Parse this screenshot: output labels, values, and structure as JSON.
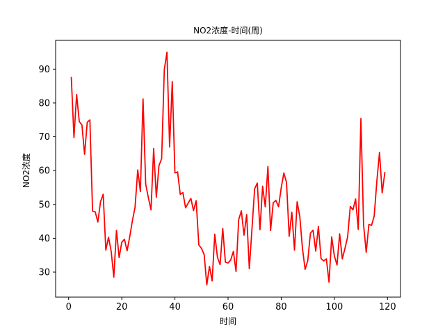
{
  "chart_data": {
    "type": "line",
    "title": "NO2浓度-时间(周)",
    "xlabel": "时间",
    "ylabel": "NO2浓度",
    "xlim": [
      -4.9,
      124.9
    ],
    "ylim": [
      22.6,
      98.5
    ],
    "grid": false,
    "legend": "none",
    "x_ticks": [
      0,
      20,
      40,
      60,
      80,
      100,
      120
    ],
    "y_ticks": [
      30,
      40,
      50,
      60,
      70,
      80,
      90
    ],
    "series": [
      {
        "color": "#ff0000",
        "x": [
          1,
          2,
          3,
          4,
          5,
          6,
          7,
          8,
          9,
          10,
          11,
          12,
          13,
          14,
          15,
          16,
          17,
          18,
          19,
          20,
          21,
          22,
          23,
          24,
          25,
          26,
          27,
          28,
          29,
          30,
          31,
          32,
          33,
          34,
          35,
          36,
          37,
          38,
          39,
          40,
          41,
          42,
          43,
          44,
          45,
          46,
          47,
          48,
          49,
          50,
          51,
          52,
          53,
          54,
          55,
          56,
          57,
          58,
          59,
          60,
          61,
          62,
          63,
          64,
          65,
          66,
          67,
          68,
          69,
          70,
          71,
          72,
          73,
          74,
          75,
          76,
          77,
          78,
          79,
          80,
          81,
          82,
          83,
          84,
          85,
          86,
          87,
          88,
          89,
          90,
          91,
          92,
          93,
          94,
          95,
          96,
          97,
          98,
          99,
          100,
          101,
          102,
          103,
          104,
          105,
          106,
          107,
          108,
          109,
          110,
          111,
          112,
          113,
          114,
          115,
          116,
          117,
          118,
          119
        ],
        "values": [
          87.5,
          69.8,
          82.5,
          74.5,
          73.5,
          64.8,
          74.3,
          75.0,
          48.0,
          47.8,
          44.8,
          50.8,
          53.0,
          36.5,
          40.3,
          36.2,
          28.5,
          42.3,
          34.3,
          38.8,
          39.7,
          36.3,
          40.5,
          45.2,
          49.2,
          60.2,
          53.8,
          81.2,
          56.0,
          52.0,
          48.4,
          66.5,
          52.1,
          61.5,
          63.5,
          89.8,
          95.0,
          67.0,
          86.3,
          59.3,
          59.6,
          53.0,
          53.5,
          49.0,
          50.4,
          51.8,
          48.2,
          51.1,
          38.0,
          37.0,
          35.2,
          26.2,
          31.7,
          27.4,
          41.2,
          34.4,
          32.2,
          42.9,
          32.9,
          32.7,
          33.6,
          36.1,
          30.2,
          45.5,
          48.1,
          40.9,
          47.0,
          31.0,
          42.8,
          54.6,
          56.3,
          42.5,
          55.4,
          49.3,
          61.2,
          42.3,
          50.5,
          51.2,
          49.3,
          54.9,
          59.3,
          56.5,
          40.6,
          47.7,
          36.5,
          50.8,
          46.4,
          37.0,
          30.8,
          33.4,
          41.5,
          42.4,
          36.2,
          43.5,
          34.0,
          33.3,
          33.9,
          27.0,
          40.4,
          34.8,
          32.1,
          41.3,
          33.9,
          37.0,
          40.4,
          49.4,
          48.4,
          51.6,
          42.6,
          75.4,
          44.0,
          35.8,
          44.1,
          43.8,
          46.6,
          56.9,
          65.4,
          53.4,
          59.4
        ]
      }
    ]
  }
}
